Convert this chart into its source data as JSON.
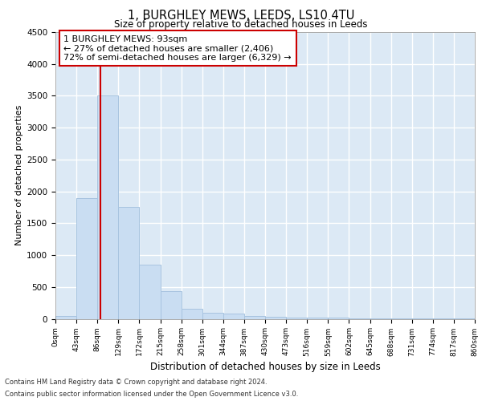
{
  "title_line1": "1, BURGHLEY MEWS, LEEDS, LS10 4TU",
  "title_line2": "Size of property relative to detached houses in Leeds",
  "xlabel": "Distribution of detached houses by size in Leeds",
  "ylabel": "Number of detached properties",
  "bar_edges": [
    0,
    43,
    86,
    129,
    172,
    215,
    258,
    301,
    344,
    387,
    430,
    473,
    516,
    559,
    602,
    645,
    688,
    731,
    774,
    817,
    860
  ],
  "bar_heights": [
    50,
    1900,
    3500,
    1750,
    850,
    430,
    160,
    100,
    80,
    50,
    35,
    25,
    20,
    15,
    10,
    8,
    6,
    5,
    4,
    3
  ],
  "bar_color": "#c9ddf2",
  "bar_edge_color": "#a8c4e0",
  "property_size": 93,
  "property_line_color": "#cc0000",
  "annotation_line1": "1 BURGHLEY MEWS: 93sqm",
  "annotation_line2": "← 27% of detached houses are smaller (2,406)",
  "annotation_line3": "72% of semi-detached houses are larger (6,329) →",
  "annotation_box_color": "#ffffff",
  "annotation_border_color": "#cc0000",
  "ylim": [
    0,
    4500
  ],
  "yticks": [
    0,
    500,
    1000,
    1500,
    2000,
    2500,
    3000,
    3500,
    4000,
    4500
  ],
  "plot_bg_color": "#dce9f5",
  "grid_color": "#ffffff",
  "footer_line1": "Contains HM Land Registry data © Crown copyright and database right 2024.",
  "footer_line2": "Contains public sector information licensed under the Open Government Licence v3.0.",
  "tick_labels": [
    "0sqm",
    "43sqm",
    "86sqm",
    "129sqm",
    "172sqm",
    "215sqm",
    "258sqm",
    "301sqm",
    "344sqm",
    "387sqm",
    "430sqm",
    "473sqm",
    "516sqm",
    "559sqm",
    "602sqm",
    "645sqm",
    "688sqm",
    "731sqm",
    "774sqm",
    "817sqm",
    "860sqm"
  ]
}
